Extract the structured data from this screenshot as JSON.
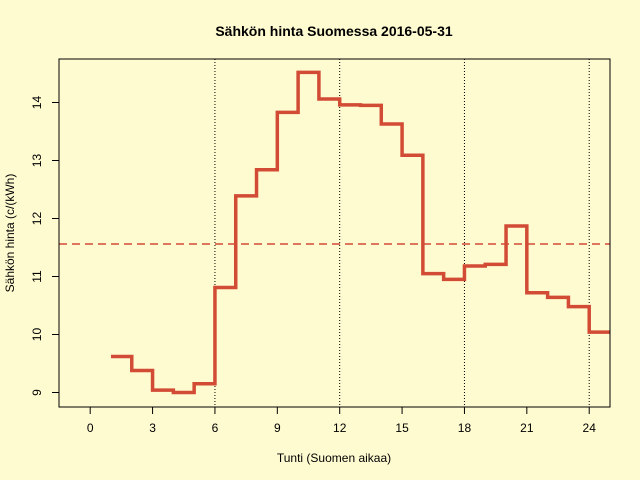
{
  "chart_data": {
    "type": "line",
    "title": "Sähkön hinta Suomessa 2016-05-31",
    "xlabel": "Tunti (Suomen aikaa)",
    "ylabel": "Sähkön hinta (c/(kWh)",
    "xlim": [
      -1.5,
      25
    ],
    "ylim": [
      8.75,
      14.75
    ],
    "x_ticks": [
      0,
      3,
      6,
      9,
      12,
      15,
      18,
      21,
      24
    ],
    "y_ticks": [
      9,
      10,
      11,
      12,
      13,
      14
    ],
    "vertical_gridlines": [
      6,
      12,
      18,
      24
    ],
    "grid": "vertical dotted lines only",
    "step_style": "post",
    "series": [
      {
        "color": "#d24b35",
        "x": [
          1,
          2,
          3,
          4,
          5,
          6,
          7,
          8,
          9,
          10,
          11,
          12,
          13,
          14,
          15,
          16,
          17,
          18,
          19,
          20,
          21,
          22,
          23,
          24,
          25
        ],
        "y": [
          9.62,
          9.38,
          9.04,
          9.0,
          9.15,
          10.81,
          12.39,
          12.84,
          13.83,
          14.52,
          14.06,
          13.96,
          13.95,
          13.63,
          13.09,
          11.05,
          10.95,
          11.18,
          11.21,
          11.87,
          10.72,
          10.64,
          10.48,
          10.04,
          10.04
        ]
      }
    ],
    "reference_line": {
      "value": 11.56,
      "color": "#d24b35",
      "style": "dashed"
    }
  }
}
